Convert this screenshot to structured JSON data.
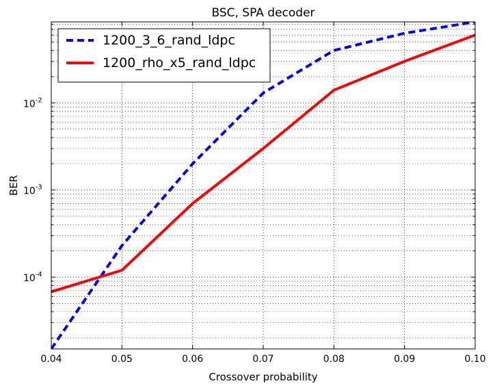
{
  "chart_data": {
    "type": "line",
    "title": "BSC, SPA decoder",
    "xlabel": "Crossover probability",
    "ylabel": "BER",
    "xlim": [
      0.04,
      0.1
    ],
    "ylim": [
      1.5e-05,
      0.085
    ],
    "yscale": "log",
    "grid": true,
    "legend_position": "top-left",
    "x_ticks": [
      "0.04",
      "0.05",
      "0.06",
      "0.07",
      "0.08",
      "0.09",
      "0.10"
    ],
    "y_ticks": [
      {
        "base": "10",
        "exp": "-4"
      },
      {
        "base": "10",
        "exp": "-3"
      },
      {
        "base": "10",
        "exp": "-2"
      }
    ],
    "series": [
      {
        "name": "1200_3_6_rand_ldpc",
        "color": "#0000ff",
        "style": "dashed",
        "x": [
          0.04,
          0.05,
          0.06,
          0.07,
          0.08,
          0.09,
          0.1
        ],
        "y": [
          1.5e-05,
          0.00023,
          0.002,
          0.013,
          0.04,
          0.063,
          0.085
        ]
      },
      {
        "name": "1200_rho_x5_rand_ldpc",
        "color": "#ff0000",
        "style": "solid",
        "x": [
          0.04,
          0.05,
          0.06,
          0.07,
          0.08,
          0.09,
          0.1
        ],
        "y": [
          6.8e-05,
          0.00012,
          0.0007,
          0.003,
          0.014,
          0.03,
          0.06
        ]
      }
    ]
  }
}
